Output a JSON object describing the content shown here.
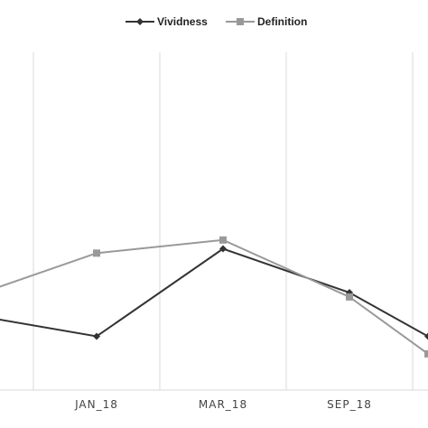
{
  "chart_data": {
    "type": "line",
    "categories": [
      "",
      "JAN_18",
      "MAR_18",
      "SEP_18",
      ""
    ],
    "series": [
      {
        "name": "Vividness",
        "values": [
          3.5,
          3.0,
          5.0,
          4.0,
          3.0
        ],
        "color": "#333333",
        "marker": "diamond"
      },
      {
        "name": "Definition",
        "values": [
          3.9,
          4.9,
          5.2,
          3.9,
          2.6
        ],
        "color": "#999999",
        "marker": "square"
      }
    ],
    "ylim": [
      0,
      10
    ],
    "grid": "vertical",
    "legend": "top-center"
  }
}
